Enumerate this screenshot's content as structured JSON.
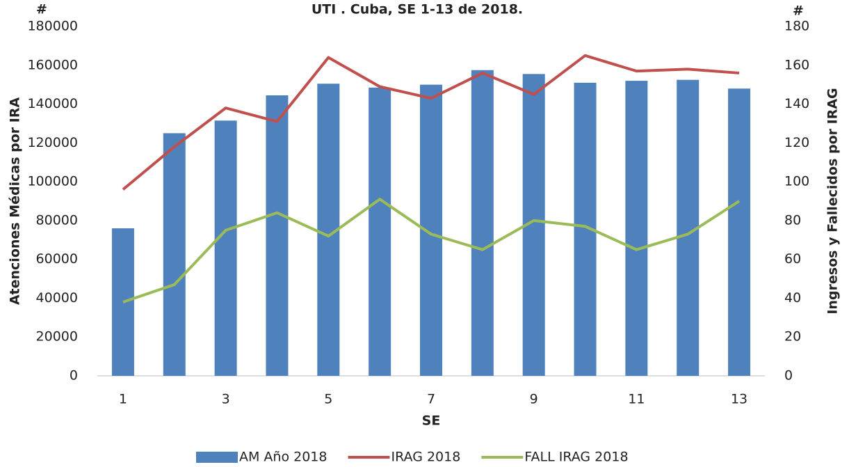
{
  "chart_data": {
    "type": "bar_line",
    "title": "UTI . Cuba,  SE 1-13 de 2018.",
    "y_unit": "#",
    "y2_unit": "#",
    "xlabel": "SE",
    "ylabel": "Atenciones Médicas por IRA",
    "y2label": "Ingresos y Fallecidos por IRAG",
    "categories": [
      "1",
      null,
      "3",
      null,
      "5",
      null,
      "7",
      null,
      "9",
      null,
      "11",
      null,
      "13"
    ],
    "series": [
      {
        "name": "AM Año 2018",
        "type": "bar",
        "color": "#4f81bd",
        "axis": "y",
        "values": [
          76000,
          125000,
          131500,
          144500,
          150500,
          148500,
          150000,
          157500,
          155500,
          151000,
          152000,
          152500,
          148000
        ]
      },
      {
        "name": "IRAG 2018",
        "type": "line",
        "color": "#c0504d",
        "axis": "y2",
        "values": [
          96,
          118,
          138,
          131,
          164,
          149,
          143,
          156,
          145,
          165,
          157,
          158,
          156
        ]
      },
      {
        "name": "FALL IRAG 2018",
        "type": "line",
        "color": "#9bbb59",
        "axis": "y2",
        "values": [
          38,
          47,
          75,
          84,
          72,
          91,
          73,
          65,
          80,
          77,
          65,
          73,
          90
        ]
      }
    ],
    "ylim": [
      0,
      180000
    ],
    "yticks": [
      0,
      20000,
      40000,
      60000,
      80000,
      100000,
      120000,
      140000,
      160000,
      180000
    ],
    "y2lim": [
      0,
      180
    ],
    "y2ticks": [
      0,
      20,
      40,
      60,
      80,
      100,
      120,
      140,
      160,
      180
    ],
    "grid": false,
    "legend": "bottom"
  }
}
